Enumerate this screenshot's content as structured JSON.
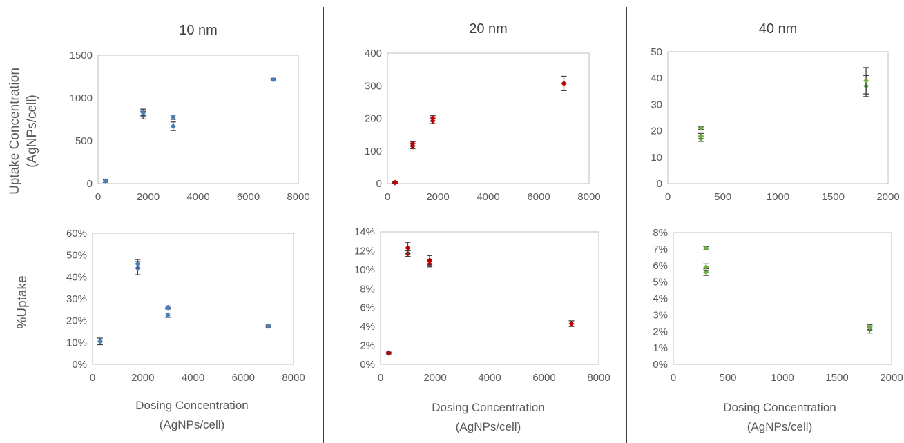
{
  "figure": {
    "ylabel_top": [
      "Uptake Concentration",
      "(AgNPs/cell)"
    ],
    "ylabel_bottom": "%Uptake",
    "xlabel": [
      "Dosing Concentration",
      "(AgNPs/cell)"
    ]
  },
  "colors": {
    "10nm": "#4a7ebb",
    "20nm": "#c00000",
    "40nm": "#70ad47",
    "errorbar": "#404040",
    "plot_border": "#bfbfbf",
    "divider": "#404040"
  },
  "chart_data": [
    {
      "id": "p10_uptake",
      "type": "scatter",
      "title": "10 nm",
      "xlim": [
        0,
        8000
      ],
      "ylim": [
        0,
        1500
      ],
      "xticks": [
        "0",
        "2000",
        "4000",
        "6000",
        "8000"
      ],
      "yticks": [
        "0",
        "500",
        "1000",
        "1500"
      ],
      "series": [
        {
          "color": "#4a7ebb",
          "points": [
            {
              "x": 300,
              "y": 30,
              "err": 15
            },
            {
              "x": 1800,
              "y": 800,
              "err": 45
            },
            {
              "x": 1800,
              "y": 830,
              "err": 40
            },
            {
              "x": 3000,
              "y": 670,
              "err": 50
            },
            {
              "x": 3000,
              "y": 775,
              "err": 25
            },
            {
              "x": 7000,
              "y": 1215,
              "err": 15
            }
          ]
        }
      ]
    },
    {
      "id": "p20_uptake",
      "type": "scatter",
      "title": "20 nm",
      "xlim": [
        0,
        8000
      ],
      "ylim": [
        0,
        400
      ],
      "xticks": [
        "0",
        "2000",
        "4000",
        "6000",
        "8000"
      ],
      "yticks": [
        "0",
        "100",
        "200",
        "300",
        "400"
      ],
      "series": [
        {
          "color": "#c00000",
          "points": [
            {
              "x": 300,
              "y": 3,
              "err": 2
            },
            {
              "x": 1000,
              "y": 115,
              "err": 8
            },
            {
              "x": 1000,
              "y": 122,
              "err": 6
            },
            {
              "x": 1800,
              "y": 192,
              "err": 8
            },
            {
              "x": 1800,
              "y": 200,
              "err": 8
            },
            {
              "x": 7000,
              "y": 307,
              "err": 22
            }
          ]
        }
      ]
    },
    {
      "id": "p40_uptake",
      "type": "scatter",
      "title": "40 nm",
      "xlim": [
        0,
        2000
      ],
      "ylim": [
        0,
        50
      ],
      "xticks": [
        "0",
        "500",
        "1000",
        "1500",
        "2000"
      ],
      "yticks": [
        "0",
        "10",
        "20",
        "30",
        "40",
        "50"
      ],
      "series": [
        {
          "color": "#70ad47",
          "points": [
            {
              "x": 300,
              "y": 17,
              "err": 1
            },
            {
              "x": 300,
              "y": 18,
              "err": 1
            },
            {
              "x": 300,
              "y": 21,
              "err": 0.5
            },
            {
              "x": 1800,
              "y": 37,
              "err": 4
            },
            {
              "x": 1800,
              "y": 39,
              "err": 5
            }
          ]
        }
      ]
    },
    {
      "id": "p10_pct",
      "type": "scatter",
      "title": "",
      "xlim": [
        0,
        8000
      ],
      "ylim": [
        0,
        60
      ],
      "xticks": [
        "0",
        "2000",
        "4000",
        "6000",
        "8000"
      ],
      "yticks": [
        "0%",
        "10%",
        "20%",
        "30%",
        "40%",
        "50%",
        "60%"
      ],
      "series": [
        {
          "color": "#4a7ebb",
          "points": [
            {
              "x": 300,
              "y": 10.5,
              "err": 1.5
            },
            {
              "x": 1800,
              "y": 44,
              "err": 3
            },
            {
              "x": 1800,
              "y": 46,
              "err": 2
            },
            {
              "x": 3000,
              "y": 22.5,
              "err": 1
            },
            {
              "x": 3000,
              "y": 26,
              "err": 0.7
            },
            {
              "x": 7000,
              "y": 17.5,
              "err": 0.5
            }
          ]
        }
      ]
    },
    {
      "id": "p20_pct",
      "type": "scatter",
      "title": "",
      "xlim": [
        0,
        8000
      ],
      "ylim": [
        0,
        14
      ],
      "xticks": [
        "0",
        "2000",
        "4000",
        "6000",
        "8000"
      ],
      "yticks": [
        "0%",
        "2%",
        "4%",
        "6%",
        "8%",
        "10%",
        "12%",
        "14%"
      ],
      "series": [
        {
          "color": "#c00000",
          "points": [
            {
              "x": 300,
              "y": 1.2,
              "err": 0.1
            },
            {
              "x": 1000,
              "y": 11.7,
              "err": 0.3
            },
            {
              "x": 1000,
              "y": 12.3,
              "err": 0.6
            },
            {
              "x": 1800,
              "y": 10.6,
              "err": 0.3
            },
            {
              "x": 1800,
              "y": 11.0,
              "err": 0.5
            },
            {
              "x": 7000,
              "y": 4.3,
              "err": 0.3
            }
          ]
        }
      ]
    },
    {
      "id": "p40_pct",
      "type": "scatter",
      "title": "",
      "xlim": [
        0,
        2000
      ],
      "ylim": [
        0,
        8
      ],
      "xticks": [
        "0",
        "500",
        "1000",
        "1500",
        "2000"
      ],
      "yticks": [
        "0%",
        "1%",
        "2%",
        "3%",
        "4%",
        "5%",
        "6%",
        "7%",
        "8%"
      ],
      "series": [
        {
          "color": "#70ad47",
          "points": [
            {
              "x": 300,
              "y": 5.6,
              "err": 0.2
            },
            {
              "x": 300,
              "y": 5.9,
              "err": 0.2
            },
            {
              "x": 300,
              "y": 7.05,
              "err": 0.1
            },
            {
              "x": 1800,
              "y": 2.1,
              "err": 0.2
            },
            {
              "x": 1800,
              "y": 2.25,
              "err": 0.15
            }
          ]
        }
      ]
    }
  ]
}
